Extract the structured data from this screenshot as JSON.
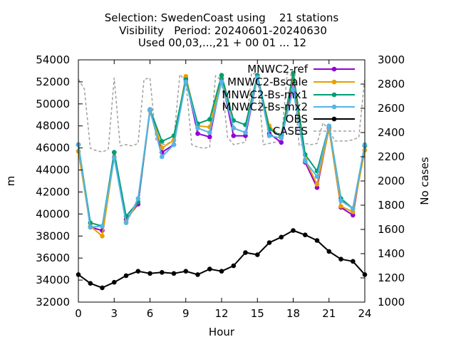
{
  "chart_data": {
    "type": "line",
    "title": [
      "Selection: SwedenCoast using    21 stations",
      "Visibility   Period: 20240601-20240630",
      "Used 00,03,...,21 + 00 01 ... 12"
    ],
    "xlabel": "Hour",
    "ylabel": "m",
    "y2label": "No cases",
    "xlim": [
      0,
      24
    ],
    "ylim": [
      32000,
      54000
    ],
    "y2lim": [
      1000,
      3000
    ],
    "xticks": [
      "0",
      "3",
      "6",
      "9",
      "12",
      "15",
      "18",
      "21",
      "24"
    ],
    "yticks": [
      "32000",
      "34000",
      "36000",
      "38000",
      "40000",
      "42000",
      "44000",
      "46000",
      "48000",
      "50000",
      "52000",
      "54000"
    ],
    "y2ticks": [
      "1000",
      "1200",
      "1400",
      "1600",
      "1800",
      "2000",
      "2200",
      "2400",
      "2600",
      "2800",
      "3000"
    ],
    "grid": false,
    "legend_position": "top-right",
    "x": [
      0,
      1,
      2,
      3,
      4,
      5,
      6,
      7,
      8,
      9,
      10,
      11,
      12,
      13,
      14,
      15,
      16,
      17,
      18,
      19,
      20,
      21,
      22,
      23,
      24
    ],
    "series": [
      {
        "name": "MNWC2-ref",
        "color": "#9400d3",
        "marker": "circle",
        "axis": "y",
        "values": [
          46300,
          38800,
          38500,
          45600,
          39500,
          40900,
          49400,
          45600,
          46300,
          52300,
          47300,
          47000,
          52300,
          47100,
          47100,
          52400,
          47300,
          46500,
          52200,
          44700,
          42400,
          47800,
          40600,
          39900,
          46200
        ]
      },
      {
        "name": "MNWC2-Bscale",
        "color": "#e69f00",
        "marker": "circle",
        "axis": "y",
        "values": [
          45700,
          38900,
          38000,
          45200,
          39300,
          41100,
          49400,
          46000,
          46700,
          52500,
          48000,
          47900,
          52400,
          47800,
          47400,
          52400,
          48000,
          46900,
          52600,
          44900,
          42700,
          47700,
          40700,
          40200,
          45800
        ]
      },
      {
        "name": "MNWC2-Bs-mx1",
        "color": "#009e73",
        "marker": "circle",
        "axis": "y",
        "values": [
          46300,
          39200,
          38900,
          45600,
          39800,
          41100,
          49500,
          46600,
          47100,
          52200,
          48200,
          48600,
          52600,
          48500,
          48100,
          52600,
          47700,
          47100,
          52800,
          45400,
          43900,
          48000,
          41400,
          40500,
          46200
        ]
      },
      {
        "name": "MNWC2-Bs-mx2",
        "color": "#56b4e9",
        "marker": "circle",
        "axis": "y",
        "values": [
          46300,
          38800,
          38900,
          45100,
          39200,
          41400,
          49500,
          45200,
          46300,
          52000,
          47800,
          47400,
          52000,
          47800,
          47400,
          52400,
          47100,
          46900,
          51300,
          44800,
          43400,
          48000,
          41200,
          40500,
          46300
        ]
      },
      {
        "name": "OBS",
        "color": "#000000",
        "marker": "circle",
        "axis": "y",
        "values": [
          34500,
          33700,
          33300,
          33800,
          34400,
          34800,
          34600,
          34700,
          34600,
          34800,
          34500,
          35000,
          34800,
          35300,
          36500,
          36300,
          37400,
          37900,
          38500,
          38100,
          37600,
          36600,
          35900,
          35700,
          34500
        ]
      },
      {
        "name": "CASES",
        "color": "#a0a0a0",
        "marker": "none",
        "dash": true,
        "axis": "y2",
        "x": [
          0,
          0.5,
          1,
          1.5,
          2,
          2.5,
          3,
          3.5,
          4,
          4.5,
          5,
          5.5,
          6,
          6.5,
          7,
          7.5,
          8,
          8.5,
          9,
          9.5,
          10,
          10.5,
          11,
          11.5,
          12,
          12.5,
          13,
          13.5,
          14,
          14.5,
          15,
          15.5,
          16,
          16.5,
          17,
          17.5,
          18,
          18.5,
          19,
          19.5,
          20,
          20.5,
          21,
          21.5,
          22,
          22.5,
          23,
          23.5,
          24
        ],
        "values": [
          2840,
          2760,
          2270,
          2250,
          2240,
          2260,
          2850,
          2290,
          2300,
          2290,
          2310,
          2840,
          2850,
          2340,
          2300,
          2310,
          2340,
          2880,
          2820,
          2300,
          2280,
          2270,
          2280,
          2870,
          2830,
          2360,
          2300,
          2310,
          2320,
          2890,
          2880,
          2300,
          2310,
          2320,
          2330,
          2890,
          2860,
          2290,
          2310,
          2300,
          2310,
          2480,
          2420,
          2330,
          2330,
          2330,
          2340,
          2360,
          2850
        ]
      }
    ]
  }
}
